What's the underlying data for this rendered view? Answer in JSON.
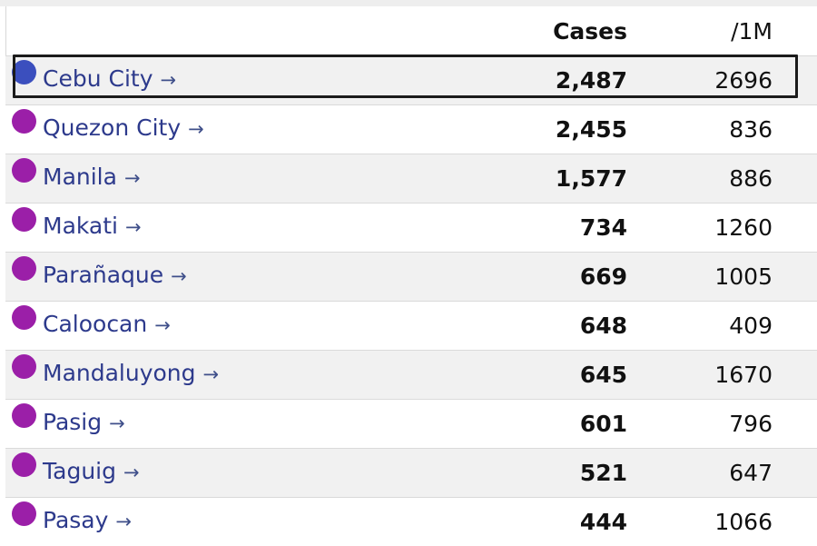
{
  "table": {
    "headers": {
      "cases": "Cases",
      "per_million": "/1M"
    },
    "rows": [
      {
        "name": "Cebu City",
        "cases": "2,487",
        "per_million": "2696",
        "color": "#3b4fbe",
        "highlighted": true
      },
      {
        "name": "Quezon City",
        "cases": "2,455",
        "per_million": "836",
        "color": "#9b1fa8"
      },
      {
        "name": "Manila",
        "cases": "1,577",
        "per_million": "886",
        "color": "#9b1fa8"
      },
      {
        "name": "Makati",
        "cases": "734",
        "per_million": "1260",
        "color": "#9b1fa8"
      },
      {
        "name": "Parañaque",
        "cases": "669",
        "per_million": "1005",
        "color": "#9b1fa8"
      },
      {
        "name": "Caloocan",
        "cases": "648",
        "per_million": "409",
        "color": "#9b1fa8"
      },
      {
        "name": "Mandaluyong",
        "cases": "645",
        "per_million": "1670",
        "color": "#9b1fa8"
      },
      {
        "name": "Pasig",
        "cases": "601",
        "per_million": "796",
        "color": "#9b1fa8"
      },
      {
        "name": "Taguig",
        "cases": "521",
        "per_million": "647",
        "color": "#9b1fa8"
      },
      {
        "name": "Pasay",
        "cases": "444",
        "per_million": "1066",
        "color": "#9b1fa8"
      }
    ],
    "link_arrow": "→"
  }
}
